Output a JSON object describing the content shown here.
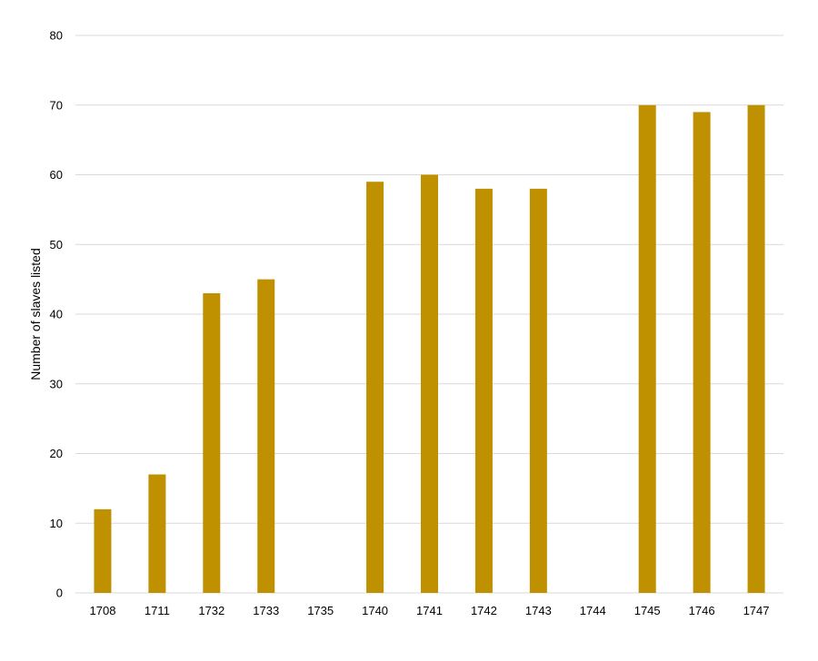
{
  "chart_data": {
    "type": "bar",
    "categories": [
      "1708",
      "1711",
      "1732",
      "1733",
      "1735",
      "1740",
      "1741",
      "1742",
      "1743",
      "1744",
      "1745",
      "1746",
      "1747"
    ],
    "values": [
      12,
      17,
      43,
      45,
      0,
      59,
      60,
      58,
      58,
      0,
      70,
      69,
      70
    ],
    "title": "",
    "xlabel": "",
    "ylabel": "Number of slaves listed",
    "ylim": [
      0,
      80
    ],
    "yticks": [
      0,
      10,
      20,
      30,
      40,
      50,
      60,
      70,
      80
    ],
    "grid": true,
    "legend": "none",
    "bar_color": "#BF9000",
    "grid_color": "#D9D9D9"
  }
}
